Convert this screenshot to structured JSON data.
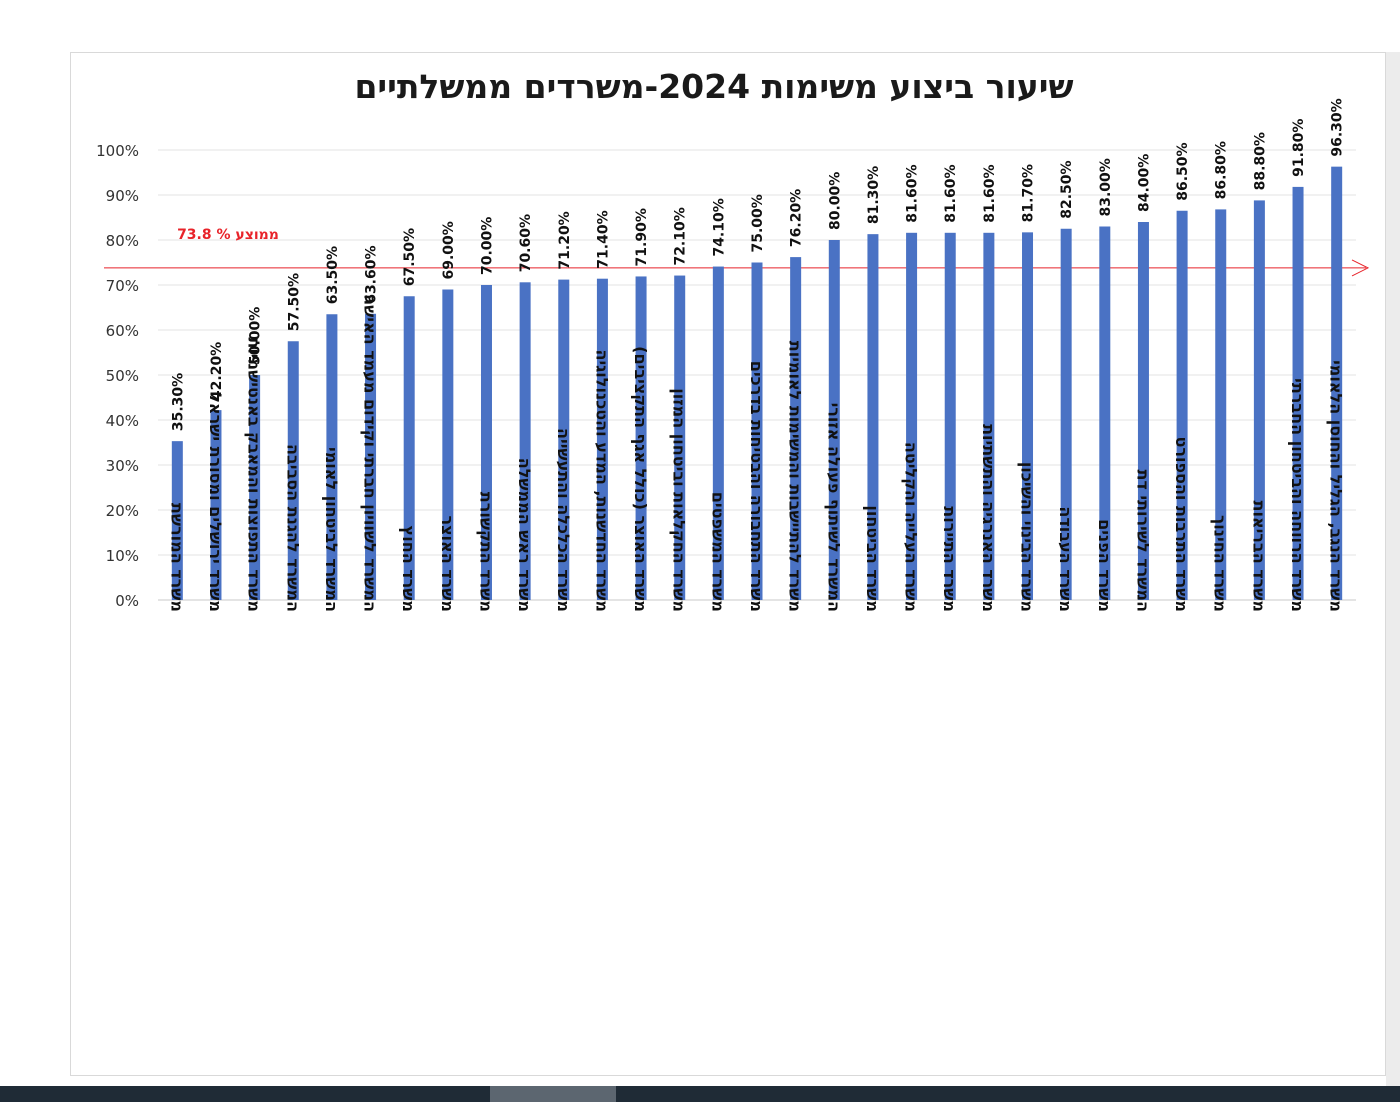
{
  "chart_data": {
    "type": "bar",
    "title": "שיעור ביצוע משימות 2024-משרדים ממשלתיים",
    "xlabel": "",
    "ylabel": "",
    "ylim": [
      0,
      100
    ],
    "grid": true,
    "y_ticks": [
      "0%",
      "10%",
      "20%",
      "30%",
      "40%",
      "50%",
      "60%",
      "70%",
      "80%",
      "90%",
      "100%"
    ],
    "categories": [
      "משרד המורשת",
      "משרד ירושלים ומסורת ישראל",
      "משרד התפוצות והמאבק באנטישמיות",
      "המשרד להגנת הסביבה",
      "המשרד לביטחון לאומי",
      "המשרד לשוויון חברתי וקידום מעמד האישה",
      "משרד החוץ",
      "משרד האוצר",
      "משרד התקשורת",
      "משרד ראש הממשלה",
      "משרד הכלכלה והתעשייה",
      "משרד החדשנות, המדע והטכנולוגיה",
      "משרד האוצר (כולל אגף התקציבים)",
      "משרד החקלאות וביטחון המזון",
      "משרד המשפטים",
      "משרד התחבורה והבטיחות בדרכים",
      "משרד להתיישבות והמשימות לאומיות",
      "המשרד לשיתוף פעולה אזורי",
      "משרד הביטחון",
      "משרד העלייה והקליטה",
      "משרד התיירות",
      "משרד האנרגיה והתשתיות",
      "משרד הבינוי והשיכון",
      "משרד העבודה",
      "משרד הפנים",
      "המשרד לשירותי דת",
      "משרד התרבות והספורט",
      "משרד החינוך",
      "משרד הבריאות",
      "משרד הרווחה והביטחון החברתי",
      "משרד הנגב, הגליל והחוסן הלאומי"
    ],
    "values": [
      35.3,
      42.2,
      50.0,
      57.5,
      63.5,
      63.6,
      67.5,
      69.0,
      70.0,
      70.6,
      71.2,
      71.4,
      71.9,
      72.1,
      74.1,
      75.0,
      76.2,
      80.0,
      81.3,
      81.6,
      81.6,
      81.6,
      81.7,
      82.5,
      83.0,
      84.0,
      86.5,
      86.8,
      88.8,
      91.8,
      96.3
    ],
    "data_labels": [
      "35.30%",
      "42.20%",
      "50.00%",
      "57.50%",
      "63.50%",
      "63.60%",
      "67.50%",
      "69.00%",
      "70.00%",
      "70.60%",
      "71.20%",
      "71.40%",
      "71.90%",
      "72.10%",
      "74.10%",
      "75.00%",
      "76.20%",
      "80.00%",
      "81.30%",
      "81.60%",
      "81.60%",
      "81.60%",
      "81.70%",
      "82.50%",
      "83.00%",
      "84.00%",
      "86.50%",
      "86.80%",
      "88.80%",
      "91.80%",
      "96.30%"
    ],
    "bar_color": "#4a72c4",
    "average": {
      "value": 73.8,
      "label": "ממוצע % 73.8",
      "color": "#e8232a"
    }
  }
}
